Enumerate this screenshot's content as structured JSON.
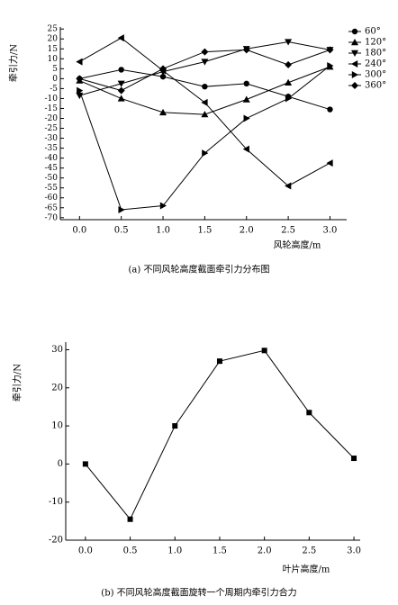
{
  "chart_data": [
    {
      "type": "line",
      "ylabel": "牵引力/N",
      "xlabel": "风轮高度/m",
      "caption": "(a) 不同风轮高度截面牵引力分布图",
      "x": [
        0,
        0.5,
        1,
        1.5,
        2,
        2.5,
        3
      ],
      "series": [
        {
          "name": "60°",
          "marker": "circle",
          "color": "#000000",
          "values": [
            0,
            4.5,
            1,
            -4,
            -2.5,
            -9,
            -15.5
          ]
        },
        {
          "name": "120°",
          "marker": "triangle-up",
          "color": "#000000",
          "values": [
            -1,
            -10,
            -17,
            -18,
            -10.5,
            -2,
            6
          ]
        },
        {
          "name": "180°",
          "marker": "triangle-down",
          "color": "#000000",
          "values": [
            -8.5,
            -2.5,
            3.5,
            8.5,
            15,
            18.5,
            14.5
          ]
        },
        {
          "name": "240°",
          "marker": "triangle-left",
          "color": "#000000",
          "values": [
            8.5,
            20.5,
            4,
            -12,
            -35.5,
            -54,
            -42.5
          ]
        },
        {
          "name": "300°",
          "marker": "triangle-right",
          "color": "#000000",
          "values": [
            -6,
            -66,
            -64,
            -37.5,
            -20,
            -10,
            6.5
          ]
        },
        {
          "name": "360°",
          "marker": "diamond",
          "color": "#000000",
          "values": [
            0,
            -6,
            5,
            13.5,
            14.5,
            7,
            14.5
          ]
        }
      ],
      "xlim": [
        -0.23,
        3.2
      ],
      "ylim": [
        -71,
        26
      ],
      "xticks": [
        {
          "value": 0,
          "label": "0.0"
        },
        0.5,
        {
          "value": 1,
          "label": "1.0"
        },
        1.5,
        {
          "value": 2,
          "label": "2.0"
        },
        2.5,
        {
          "value": 3,
          "label": "3.0"
        }
      ],
      "yticks": [
        -70,
        -65,
        -60,
        -55,
        -50,
        -45,
        -40,
        -35,
        -30,
        -25,
        -20,
        -15,
        -10,
        -5,
        0,
        5,
        10,
        15,
        20,
        25
      ],
      "legend": "right"
    },
    {
      "type": "line",
      "ylabel": "牵引力/N",
      "xlabel": "叶片高度/m",
      "caption": "(b) 不同风轮高度截面旋转一个周期内牵引力合力",
      "x": [
        0,
        0.5,
        1,
        1.5,
        2,
        2.5,
        3
      ],
      "series": [
        {
          "marker": "square",
          "color": "#000000",
          "values": [
            0,
            -14.5,
            10,
            27,
            29.8,
            13.5,
            1.5
          ]
        }
      ],
      "xlim": [
        -0.22,
        3.07
      ],
      "ylim": [
        -20,
        32
      ],
      "xticks": [
        {
          "value": 0,
          "label": "0.0"
        },
        0.5,
        {
          "value": 1,
          "label": "1.0"
        },
        1.5,
        {
          "value": 2,
          "label": "2.0"
        },
        2.5,
        {
          "value": 3,
          "label": "3.0"
        }
      ],
      "yticks": [
        -20,
        -10,
        0,
        10,
        20,
        30
      ]
    }
  ]
}
